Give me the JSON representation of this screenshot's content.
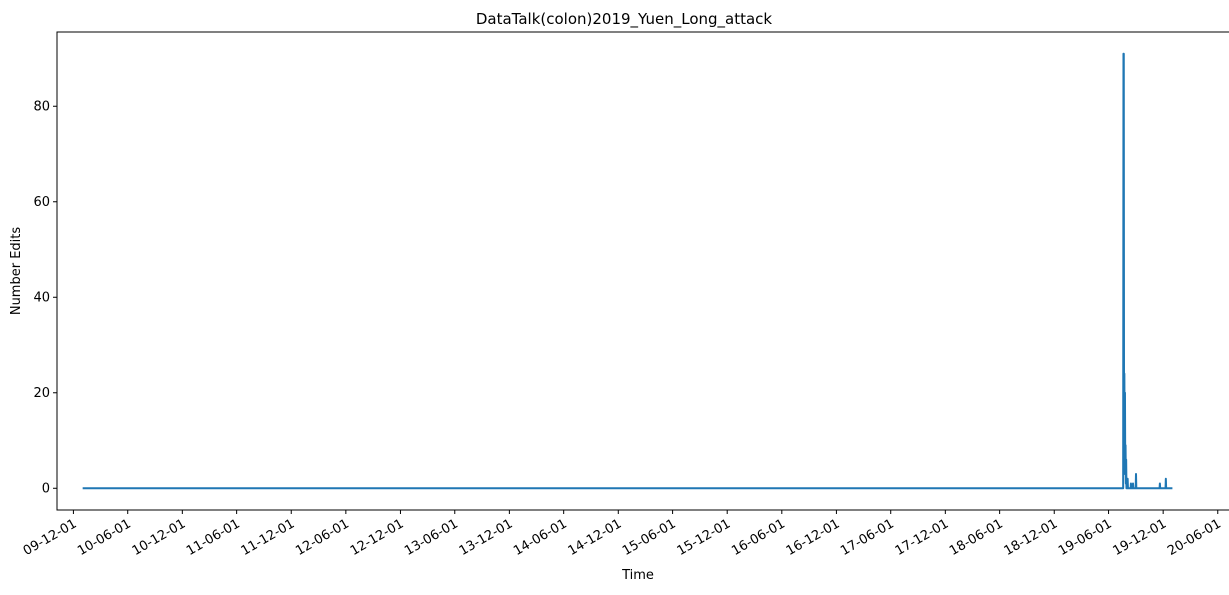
{
  "chart_data": {
    "type": "line",
    "title": "DataTalk(colon)2019_Yuen_Long_attack",
    "xlabel": "Time",
    "ylabel": "Number Edits",
    "x_axis_type": "date",
    "xlim": [
      "2009-10-07",
      "2020-07-12"
    ],
    "ylim": [
      -4.55,
      95.55
    ],
    "grid": false,
    "legend": "none",
    "y_ticks": [
      0,
      20,
      40,
      60,
      80
    ],
    "x_ticks": [
      {
        "date": "2009-12-01",
        "label": "09-12-01"
      },
      {
        "date": "2010-06-01",
        "label": "10-06-01"
      },
      {
        "date": "2010-12-01",
        "label": "10-12-01"
      },
      {
        "date": "2011-06-01",
        "label": "11-06-01"
      },
      {
        "date": "2011-12-01",
        "label": "11-12-01"
      },
      {
        "date": "2012-06-01",
        "label": "12-06-01"
      },
      {
        "date": "2012-12-01",
        "label": "12-12-01"
      },
      {
        "date": "2013-06-01",
        "label": "13-06-01"
      },
      {
        "date": "2013-12-01",
        "label": "13-12-01"
      },
      {
        "date": "2014-06-01",
        "label": "14-06-01"
      },
      {
        "date": "2014-12-01",
        "label": "14-12-01"
      },
      {
        "date": "2015-06-01",
        "label": "15-06-01"
      },
      {
        "date": "2015-12-01",
        "label": "15-12-01"
      },
      {
        "date": "2016-06-01",
        "label": "16-06-01"
      },
      {
        "date": "2016-12-01",
        "label": "16-12-01"
      },
      {
        "date": "2017-06-01",
        "label": "17-06-01"
      },
      {
        "date": "2017-12-01",
        "label": "17-12-01"
      },
      {
        "date": "2018-06-01",
        "label": "18-06-01"
      },
      {
        "date": "2018-12-01",
        "label": "18-12-01"
      },
      {
        "date": "2019-06-01",
        "label": "19-06-01"
      },
      {
        "date": "2019-12-01",
        "label": "19-12-01"
      },
      {
        "date": "2020-06-01",
        "label": "20-06-01"
      }
    ],
    "series": [
      {
        "color": "#1f77b4",
        "points": [
          {
            "x": "2010-01-01",
            "y": 0
          },
          {
            "x": "2019-07-20",
            "y": 0
          },
          {
            "x": "2019-07-21",
            "y": 91
          },
          {
            "x": "2019-07-22",
            "y": 91
          },
          {
            "x": "2019-07-23",
            "y": 3
          },
          {
            "x": "2019-07-24",
            "y": 24
          },
          {
            "x": "2019-07-25",
            "y": 5
          },
          {
            "x": "2019-07-26",
            "y": 20
          },
          {
            "x": "2019-07-27",
            "y": 3
          },
          {
            "x": "2019-07-28",
            "y": 9
          },
          {
            "x": "2019-07-29",
            "y": 1
          },
          {
            "x": "2019-07-30",
            "y": 6
          },
          {
            "x": "2019-07-31",
            "y": 0
          },
          {
            "x": "2019-08-03",
            "y": 0
          },
          {
            "x": "2019-08-04",
            "y": 2
          },
          {
            "x": "2019-08-05",
            "y": 0
          },
          {
            "x": "2019-08-14",
            "y": 0
          },
          {
            "x": "2019-08-15",
            "y": 1
          },
          {
            "x": "2019-08-16",
            "y": 0
          },
          {
            "x": "2019-08-21",
            "y": 0
          },
          {
            "x": "2019-08-22",
            "y": 1
          },
          {
            "x": "2019-08-23",
            "y": 0
          },
          {
            "x": "2019-08-31",
            "y": 0
          },
          {
            "x": "2019-09-01",
            "y": 3
          },
          {
            "x": "2019-09-02",
            "y": 0
          },
          {
            "x": "2019-11-19",
            "y": 0
          },
          {
            "x": "2019-11-20",
            "y": 1
          },
          {
            "x": "2019-11-21",
            "y": 0
          },
          {
            "x": "2019-12-09",
            "y": 0
          },
          {
            "x": "2019-12-10",
            "y": 2
          },
          {
            "x": "2019-12-11",
            "y": 0
          },
          {
            "x": "2020-01-01",
            "y": 0
          }
        ]
      }
    ]
  }
}
